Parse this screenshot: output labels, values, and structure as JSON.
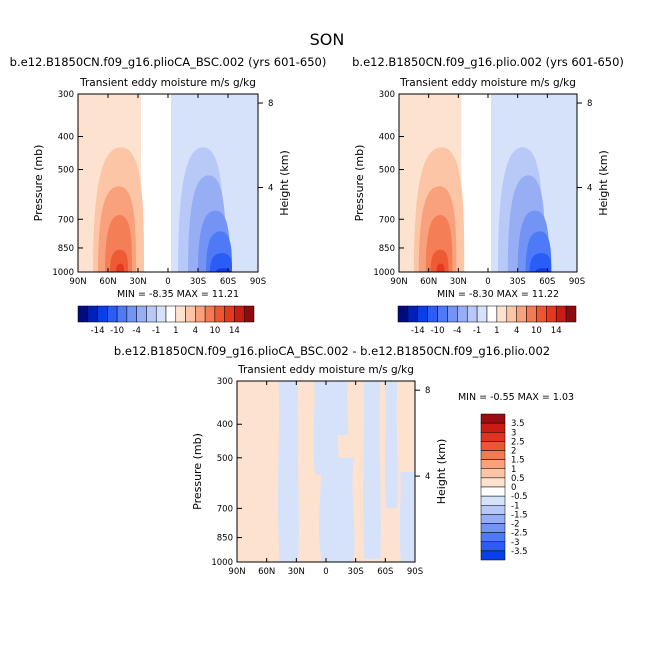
{
  "page": {
    "title": "SON"
  },
  "chart_data": [
    {
      "type": "heatmap",
      "title": "b.e12.B1850CN.f09_g16.plioCA_BSC.002 (yrs 601-650)",
      "subtitle": "Transient eddy moisture m/s g/kg",
      "ylabel": "Pressure (mb)",
      "ylabel_right": "Height (km)",
      "x_ticks": [
        "90N",
        "60N",
        "30N",
        "0",
        "30S",
        "60S",
        "90S"
      ],
      "y_ticks": [
        "300",
        "400",
        "500",
        "700",
        "850",
        "1000"
      ],
      "y2_ticks": [
        "8",
        "4"
      ],
      "stats": {
        "min_label": "MIN =",
        "min": "-8.35",
        "max_label": "MAX =",
        "max": "11.21"
      },
      "panels": [
        {
          "x": [
            90,
            27
          ],
          "level": 0.5
        },
        {
          "x": [
            -3,
            -90
          ],
          "level": -0.5
        },
        {
          "x": [
            75,
            24
          ],
          "p": [
            430,
            1000
          ],
          "level": 1
        },
        {
          "x": [
            70,
            32
          ],
          "p": [
            560,
            1000
          ],
          "level": 4
        },
        {
          "x": [
            63,
            36
          ],
          "p": [
            680,
            1000
          ],
          "level": 7
        },
        {
          "x": [
            58,
            40
          ],
          "p": [
            860,
            1000
          ],
          "level": 10
        },
        {
          "x": [
            52,
            44
          ],
          "p": [
            945,
            1000
          ],
          "level": 12
        },
        {
          "x": [
            -10,
            -56
          ],
          "p": [
            430,
            1000
          ],
          "level": -1
        },
        {
          "x": [
            -20,
            -58
          ],
          "p": [
            520,
            1000
          ],
          "level": -2
        },
        {
          "x": [
            -30,
            -62
          ],
          "p": [
            660,
            1000
          ],
          "level": -4
        },
        {
          "x": [
            -38,
            -64
          ],
          "p": [
            760,
            1000
          ],
          "level": -7
        },
        {
          "x": [
            -42,
            -64
          ],
          "p": [
            880,
            1000
          ],
          "level": -10
        },
        {
          "x": [
            -48,
            -62
          ],
          "p": [
            975,
            1000
          ],
          "level": -12
        }
      ],
      "colorbar": {
        "labels": [
          "-14",
          "-10",
          "-4",
          "-1",
          "1",
          "4",
          "10",
          "14"
        ],
        "colors": [
          "#000c7d",
          "#0020b8",
          "#0a3ee8",
          "#2b5cf5",
          "#4f7af7",
          "#7393f5",
          "#97aef5",
          "#b8c9f7",
          "#d6e2fa",
          "#ffffff",
          "#fde3cf",
          "#fcc6a6",
          "#f9a07c",
          "#f47a55",
          "#ed5631",
          "#e5391e",
          "#c81c14",
          "#8e0a0e"
        ]
      }
    },
    {
      "type": "heatmap",
      "title": "b.e12.B1850CN.f09_g16.plio.002 (yrs 601-650)",
      "subtitle": "Transient eddy moisture m/s g/kg",
      "ylabel": "Pressure (mb)",
      "ylabel_right": "Height (km)",
      "x_ticks": [
        "90N",
        "60N",
        "30N",
        "0",
        "30S",
        "60S",
        "90S"
      ],
      "y_ticks": [
        "300",
        "400",
        "500",
        "700",
        "850",
        "1000"
      ],
      "y2_ticks": [
        "8",
        "4"
      ],
      "stats": {
        "min_label": "MIN =",
        "min": "-8.30",
        "max_label": "MAX =",
        "max": "11.22"
      },
      "panels": [
        {
          "x": [
            90,
            27
          ],
          "level": 0.5
        },
        {
          "x": [
            -3,
            -90
          ],
          "level": -0.5
        },
        {
          "x": [
            75,
            24
          ],
          "p": [
            430,
            1000
          ],
          "level": 1
        },
        {
          "x": [
            70,
            32
          ],
          "p": [
            560,
            1000
          ],
          "level": 4
        },
        {
          "x": [
            63,
            36
          ],
          "p": [
            680,
            1000
          ],
          "level": 7
        },
        {
          "x": [
            58,
            40
          ],
          "p": [
            860,
            1000
          ],
          "level": 10
        },
        {
          "x": [
            52,
            44
          ],
          "p": [
            945,
            1000
          ],
          "level": 12
        },
        {
          "x": [
            -10,
            -56
          ],
          "p": [
            430,
            1000
          ],
          "level": -1
        },
        {
          "x": [
            -20,
            -58
          ],
          "p": [
            520,
            1000
          ],
          "level": -2
        },
        {
          "x": [
            -30,
            -62
          ],
          "p": [
            660,
            1000
          ],
          "level": -4
        },
        {
          "x": [
            -38,
            -64
          ],
          "p": [
            760,
            1000
          ],
          "level": -7
        },
        {
          "x": [
            -42,
            -64
          ],
          "p": [
            880,
            1000
          ],
          "level": -10
        },
        {
          "x": [
            -48,
            -62
          ],
          "p": [
            975,
            1000
          ],
          "level": -12
        }
      ],
      "colorbar": {
        "labels": [
          "-14",
          "-10",
          "-4",
          "-1",
          "1",
          "4",
          "10",
          "14"
        ],
        "colors": [
          "#000c7d",
          "#0020b8",
          "#0a3ee8",
          "#2b5cf5",
          "#4f7af7",
          "#7393f5",
          "#97aef5",
          "#b8c9f7",
          "#d6e2fa",
          "#ffffff",
          "#fde3cf",
          "#fcc6a6",
          "#f9a07c",
          "#f47a55",
          "#ed5631",
          "#e5391e",
          "#c81c14",
          "#8e0a0e"
        ]
      }
    },
    {
      "type": "heatmap",
      "title": "b.e12.B1850CN.f09_g16.plioCA_BSC.002 - b.e12.B1850CN.f09_g16.plio.002",
      "subtitle": "Transient eddy moisture m/s g/kg",
      "ylabel": "Pressure (mb)",
      "ylabel_right": "Height (km)",
      "x_ticks": [
        "90N",
        "60N",
        "30N",
        "0",
        "30S",
        "60S",
        "90S"
      ],
      "y_ticks": [
        "300",
        "400",
        "500",
        "700",
        "850",
        "1000"
      ],
      "y2_ticks": [
        "8",
        "4"
      ],
      "stats": {
        "min_label": "MIN =",
        "min": "-0.55",
        "max_label": "MAX =",
        "max": "1.03"
      },
      "background_level": 0.25,
      "patches": [
        {
          "x": [
            48,
            28
          ],
          "p": [
            300,
            1000
          ],
          "level": -0.25
        },
        {
          "x": [
            12,
            -12
          ],
          "p": [
            300,
            560
          ],
          "level": -0.25
        },
        {
          "x": [
            6,
            -28
          ],
          "p": [
            500,
            1000
          ],
          "level": -0.25
        },
        {
          "x": [
            -5,
            -22
          ],
          "p": [
            300,
            430
          ],
          "level": -0.25
        },
        {
          "x": [
            -38,
            -55
          ],
          "p": [
            300,
            980
          ],
          "level": -0.25
        },
        {
          "x": [
            -60,
            -72
          ],
          "p": [
            300,
            700
          ],
          "level": -0.25
        },
        {
          "x": [
            -75,
            -90
          ],
          "p": [
            550,
            1000
          ],
          "level": -0.25
        }
      ],
      "colorbar": {
        "labels": [
          "3.5",
          "3",
          "2.5",
          "2",
          "1.5",
          "1",
          "0.5",
          "0",
          "-0.5",
          "-1",
          "-1.5",
          "-2",
          "-2.5",
          "-3",
          "-3.5"
        ],
        "colors": [
          "#9b0d12",
          "#c81c14",
          "#e03221",
          "#ed5631",
          "#f47a55",
          "#f9a07c",
          "#fcc6a6",
          "#fde3cf",
          "#ffffff",
          "#d6e2fa",
          "#b8c9f7",
          "#97aef5",
          "#7393f5",
          "#4f7af7",
          "#2b5cf5",
          "#0a3ee8"
        ]
      }
    }
  ]
}
